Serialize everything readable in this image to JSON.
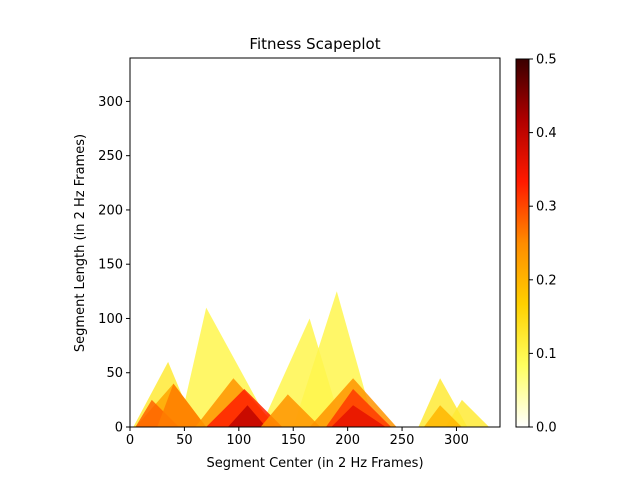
{
  "chart_data": {
    "type": "heatmap",
    "title": "Fitness Scapeplot",
    "xlabel": "Segment Center (in 2 Hz Frames)",
    "ylabel": "Segment Length (in 2 Hz Frames)",
    "xlim": [
      0,
      340
    ],
    "ylim": [
      0,
      340
    ],
    "x_ticks": [
      0,
      50,
      100,
      150,
      200,
      250,
      300
    ],
    "y_ticks": [
      0,
      50,
      100,
      150,
      200,
      250,
      300
    ],
    "colormap": "hot_r",
    "colorbar": {
      "range": [
        0.0,
        0.5
      ],
      "ticks": [
        "0.0",
        "0.1",
        "0.2",
        "0.3",
        "0.4",
        "0.5"
      ],
      "stops": [
        "#ffffff",
        "#ffff60",
        "#ffd000",
        "#ff8c00",
        "#ff1a00",
        "#b00000",
        "#3a0000"
      ]
    },
    "regions": [
      {
        "x": [
          3,
          60
        ],
        "peak": [
          35,
          60
        ],
        "fitness": 0.12
      },
      {
        "x": [
          45,
          130
        ],
        "peak": [
          70,
          110
        ],
        "fitness": 0.1
      },
      {
        "x": [
          120,
          195
        ],
        "peak": [
          165,
          100
        ],
        "fitness": 0.1
      },
      {
        "x": [
          150,
          225
        ],
        "peak": [
          190,
          125
        ],
        "fitness": 0.1
      },
      {
        "x": [
          265,
          310
        ],
        "peak": [
          285,
          45
        ],
        "fitness": 0.12
      },
      {
        "x": [
          290,
          330
        ],
        "peak": [
          305,
          25
        ],
        "fitness": 0.12
      },
      {
        "x": [
          5,
          70
        ],
        "peak": [
          40,
          40
        ],
        "fitness": 0.22
      },
      {
        "x": [
          5,
          45
        ],
        "peak": [
          20,
          25
        ],
        "fitness": 0.28
      },
      {
        "x": [
          25,
          70
        ],
        "peak": [
          40,
          40
        ],
        "fitness": 0.26
      },
      {
        "x": [
          60,
          135
        ],
        "peak": [
          95,
          45
        ],
        "fitness": 0.24
      },
      {
        "x": [
          70,
          140
        ],
        "peak": [
          105,
          35
        ],
        "fitness": 0.33
      },
      {
        "x": [
          90,
          125
        ],
        "peak": [
          108,
          20
        ],
        "fitness": 0.4
      },
      {
        "x": [
          120,
          175
        ],
        "peak": [
          145,
          30
        ],
        "fitness": 0.24
      },
      {
        "x": [
          165,
          245
        ],
        "peak": [
          205,
          45
        ],
        "fitness": 0.24
      },
      {
        "x": [
          180,
          240
        ],
        "peak": [
          205,
          35
        ],
        "fitness": 0.31
      },
      {
        "x": [
          185,
          235
        ],
        "peak": [
          205,
          20
        ],
        "fitness": 0.36
      },
      {
        "x": [
          270,
          305
        ],
        "peak": [
          285,
          20
        ],
        "fitness": 0.2
      }
    ]
  }
}
